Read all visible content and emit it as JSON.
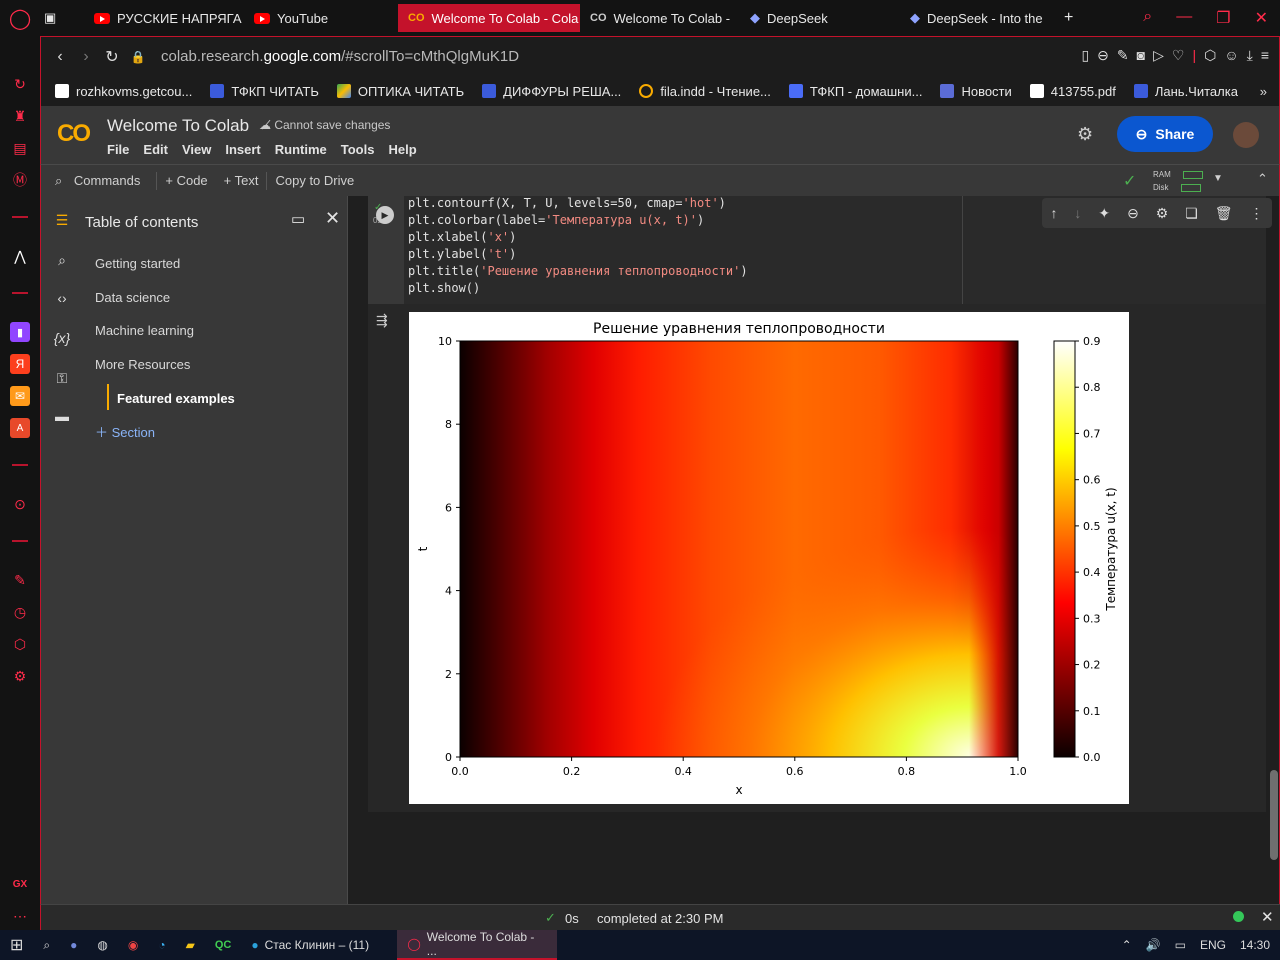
{
  "browser": {
    "tabs": [
      {
        "label": "РУССКИЕ НАПРЯГА",
        "icon": "youtube-icon"
      },
      {
        "label": "YouTube",
        "icon": "youtube-icon"
      },
      {
        "label": "Welcome To Colab - Cola",
        "icon": "colab-icon",
        "active": true
      },
      {
        "label": "Welcome To Colab -",
        "icon": "colab-icon"
      },
      {
        "label": "DeepSeek",
        "icon": "deepseek-icon"
      },
      {
        "label": "DeepSeek - Into the",
        "icon": "deepseek-icon"
      }
    ],
    "url_prefix": "colab.research.",
    "url_domain": "google.com",
    "url_path": "/#scrollTo=cMthQlgMuK1D",
    "bookmarks": [
      "rozhkovms.getcou...",
      "ТФКП ЧИТАТЬ",
      "ОПТИКА ЧИТАТЬ",
      "ДИФФУРЫ РЕША...",
      "fila.indd - Чтение...",
      "ТФКП - домашни...",
      "Новости",
      "413755.pdf",
      "Лань.Читалка"
    ]
  },
  "colab": {
    "title": "Welcome To Colab",
    "save_status": "Cannot save changes",
    "menu": [
      "File",
      "Edit",
      "View",
      "Insert",
      "Runtime",
      "Tools",
      "Help"
    ],
    "share_label": "Share",
    "toolbar": {
      "commands": "Commands",
      "code": "+ Code",
      "text": "+ Text",
      "copy": "Copy to Drive",
      "ram": "RAM",
      "disk": "Disk"
    }
  },
  "sidebar": {
    "title": "Table of contents",
    "items": [
      "Getting started",
      "Data science",
      "Machine learning",
      "More Resources",
      "Featured examples"
    ],
    "add_section": "Section"
  },
  "cell": {
    "exec_time": "0s",
    "lines": [
      {
        "pre": "plt.contourf(X, T, U, levels=50, cmap=",
        "str": "'hot'",
        "post": ")"
      },
      {
        "pre": "plt.colorbar(label=",
        "str": "'Температура u(x, t)'",
        "post": ")"
      },
      {
        "pre": "plt.xlabel(",
        "str": "'x'",
        "post": ")"
      },
      {
        "pre": "plt.ylabel(",
        "str": "'t'",
        "post": ")"
      },
      {
        "pre": "plt.title(",
        "str": "'Решение уравнения теплопроводности'",
        "post": ")"
      },
      {
        "pre": "plt.show()",
        "str": "",
        "post": ""
      }
    ]
  },
  "chart_data": {
    "type": "heatmap",
    "title": "Решение уравнения теплопроводности",
    "xlabel": "x",
    "ylabel": "t",
    "colorbar_label": "Температура u(x, t)",
    "colormap": "hot",
    "xlim": [
      0.0,
      1.0
    ],
    "ylim": [
      0,
      10
    ],
    "x_ticks": [
      "0.0",
      "0.2",
      "0.4",
      "0.6",
      "0.8",
      "1.0"
    ],
    "y_ticks": [
      "0",
      "2",
      "4",
      "6",
      "8",
      "10"
    ],
    "colorbar_ticks": [
      "0.0",
      "0.1",
      "0.2",
      "0.3",
      "0.4",
      "0.5",
      "0.6",
      "0.7",
      "0.8",
      "0.9"
    ],
    "clim": [
      0.0,
      0.9
    ]
  },
  "status": {
    "time": "0s",
    "message": "completed at 2:30 PM"
  },
  "taskbar": {
    "items": [
      {
        "label": "Стас Клинин – (11)"
      },
      {
        "label": "Welcome To Colab - ..."
      }
    ],
    "lang": "ENG",
    "clock": "14:30"
  }
}
